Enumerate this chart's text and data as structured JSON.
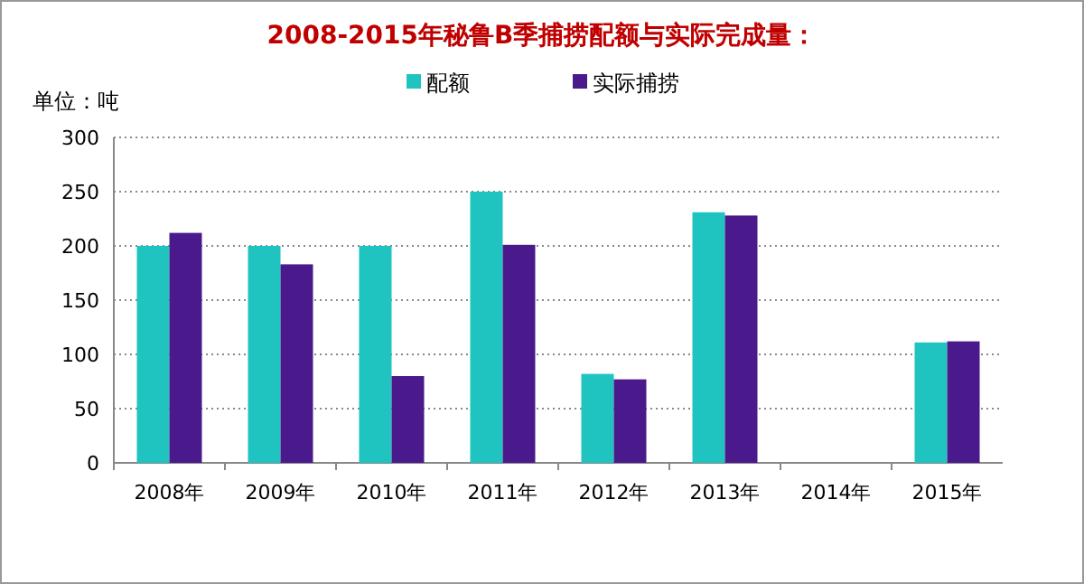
{
  "chart_data": {
    "type": "bar",
    "title": "2008-2015年秘鲁B季捕捞配额与实际完成量：",
    "ylabel": "单位：吨",
    "categories": [
      "2008年",
      "2009年",
      "2010年",
      "2011年",
      "2012年",
      "2013年",
      "2014年",
      "2015年"
    ],
    "series": [
      {
        "name": "配额",
        "color": "#1fc4c0",
        "values": [
          200,
          200,
          200,
          250,
          82,
          231,
          null,
          111
        ]
      },
      {
        "name": "实际捕捞",
        "color": "#4a1a8c",
        "values": [
          212,
          183,
          80,
          201,
          77,
          228,
          null,
          112
        ]
      }
    ],
    "ylim": [
      0,
      300
    ],
    "yticks": [
      0,
      50,
      100,
      150,
      200,
      250,
      300
    ],
    "grid": "y",
    "legend": "top"
  }
}
